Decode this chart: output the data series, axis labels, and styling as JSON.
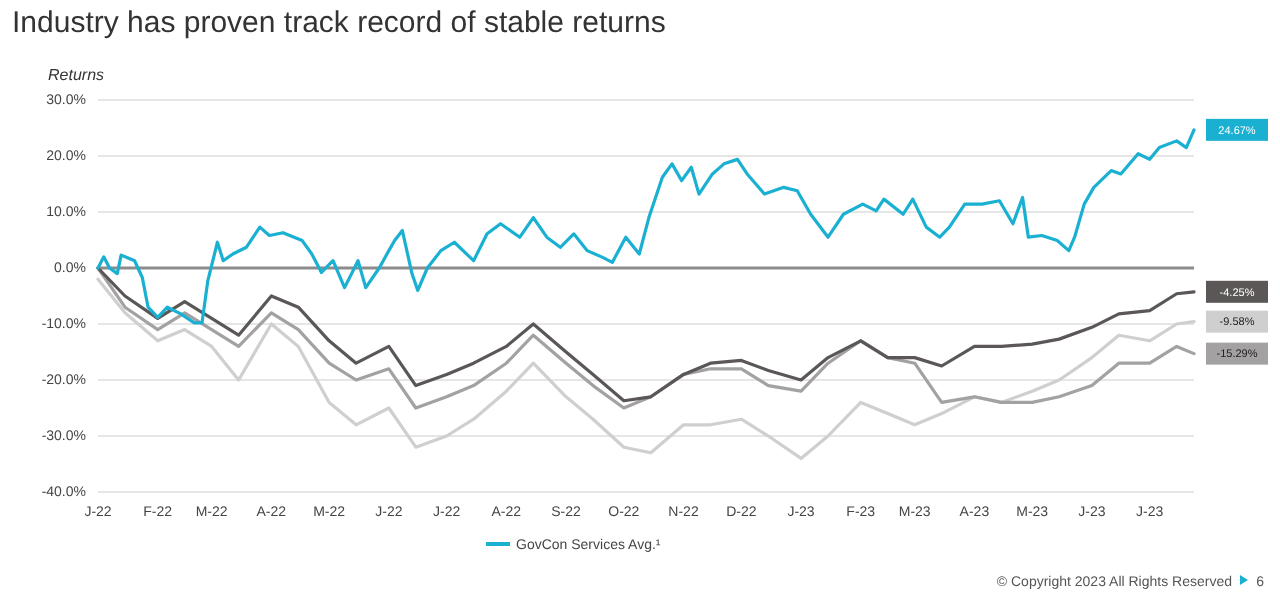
{
  "chart_data": {
    "type": "line",
    "title": "Industry has proven track record of stable returns",
    "ylabel": "Returns",
    "xlim": [
      "2022-01-01",
      "2023-07-24"
    ],
    "xticks": [
      {
        "value": "2022-01-01",
        "label": "J-22"
      },
      {
        "value": "2022-02-01",
        "label": "F-22"
      },
      {
        "value": "2022-03-01",
        "label": "M-22"
      },
      {
        "value": "2022-04-01",
        "label": "A-22"
      },
      {
        "value": "2022-05-01",
        "label": "M-22"
      },
      {
        "value": "2022-06-01",
        "label": "J-22"
      },
      {
        "value": "2022-07-01",
        "label": "J-22"
      },
      {
        "value": "2022-08-01",
        "label": "A-22"
      },
      {
        "value": "2022-09-01",
        "label": "S-22"
      },
      {
        "value": "2022-10-01",
        "label": "O-22"
      },
      {
        "value": "2022-11-01",
        "label": "N-22"
      },
      {
        "value": "2022-12-01",
        "label": "D-22"
      },
      {
        "value": "2023-01-01",
        "label": "J-23"
      },
      {
        "value": "2023-02-01",
        "label": "F-23"
      },
      {
        "value": "2023-03-01",
        "label": "M-23"
      },
      {
        "value": "2023-04-01",
        "label": "A-23"
      },
      {
        "value": "2023-05-01",
        "label": "M-23"
      },
      {
        "value": "2023-06-01",
        "label": "J-23"
      },
      {
        "value": "2023-07-01",
        "label": "J-23"
      }
    ],
    "ylim": [
      -40,
      30
    ],
    "yticks": [
      {
        "value": -40,
        "label": "-40.0%"
      },
      {
        "value": -30,
        "label": "-30.0%"
      },
      {
        "value": -20,
        "label": "-20.0%"
      },
      {
        "value": -10,
        "label": "-10.0%"
      },
      {
        "value": 0,
        "label": "0.0%"
      },
      {
        "value": 10,
        "label": "10.0%"
      },
      {
        "value": 20,
        "label": "20.0%"
      },
      {
        "value": 30,
        "label": "30.0%"
      }
    ],
    "grid": "y",
    "legend": "bottom",
    "marker": "none",
    "line_style": "solid",
    "ref_lines": [
      {
        "axis": "y",
        "value": 0,
        "color": "#8c8c8c"
      }
    ],
    "series": [
      {
        "color": "#cfcfcf",
        "x": [
          "2022-01-01",
          "2022-01-15",
          "2022-02-01",
          "2022-02-15",
          "2022-03-01",
          "2022-03-15",
          "2022-04-01",
          "2022-04-15",
          "2022-05-01",
          "2022-05-15",
          "2022-06-01",
          "2022-06-15",
          "2022-07-01",
          "2022-07-15",
          "2022-08-01",
          "2022-08-15",
          "2022-09-01",
          "2022-09-15",
          "2022-10-01",
          "2022-10-15",
          "2022-11-01",
          "2022-11-15",
          "2022-12-01",
          "2022-12-15",
          "2023-01-01",
          "2023-01-15",
          "2023-02-01",
          "2023-02-15",
          "2023-03-01",
          "2023-03-15",
          "2023-04-01",
          "2023-04-15",
          "2023-05-01",
          "2023-05-15",
          "2023-06-01",
          "2023-06-15",
          "2023-07-01",
          "2023-07-15",
          "2023-07-24"
        ],
        "values": [
          -2,
          -8,
          -13,
          -11,
          -14,
          -20,
          -10,
          -14,
          -24,
          -28,
          -25,
          -32,
          -30,
          -27,
          -22,
          -17,
          -23,
          -27,
          -32,
          -33,
          -28,
          -28,
          -27,
          -30,
          -34,
          -30,
          -24,
          -26,
          -28,
          -26,
          -23,
          -24,
          -22,
          -20,
          -16,
          -12,
          -13,
          -10,
          -9.58
        ]
      },
      {
        "color": "#a3a1a1",
        "x": [
          "2022-01-01",
          "2022-01-15",
          "2022-02-01",
          "2022-02-15",
          "2022-03-01",
          "2022-03-15",
          "2022-04-01",
          "2022-04-15",
          "2022-05-01",
          "2022-05-15",
          "2022-06-01",
          "2022-06-15",
          "2022-07-01",
          "2022-07-15",
          "2022-08-01",
          "2022-08-15",
          "2022-09-01",
          "2022-09-15",
          "2022-10-01",
          "2022-10-15",
          "2022-11-01",
          "2022-11-15",
          "2022-12-01",
          "2022-12-15",
          "2023-01-01",
          "2023-01-15",
          "2023-02-01",
          "2023-02-15",
          "2023-03-01",
          "2023-03-15",
          "2023-04-01",
          "2023-04-15",
          "2023-05-01",
          "2023-05-15",
          "2023-06-01",
          "2023-06-15",
          "2023-07-01",
          "2023-07-15",
          "2023-07-24"
        ],
        "values": [
          0,
          -7,
          -11,
          -8,
          -11,
          -14,
          -8,
          -11,
          -17,
          -20,
          -18,
          -25,
          -23,
          -21,
          -17,
          -12,
          -17,
          -21,
          -25,
          -23,
          -19,
          -18,
          -18,
          -21,
          -22,
          -17,
          -13,
          -16,
          -17,
          -24,
          -23,
          -24,
          -24,
          -23,
          -21,
          -17,
          -17,
          -14,
          -15.29
        ]
      },
      {
        "color": "#5b5757",
        "x": [
          "2022-01-01",
          "2022-01-15",
          "2022-02-01",
          "2022-02-15",
          "2022-03-01",
          "2022-03-15",
          "2022-04-01",
          "2022-04-15",
          "2022-05-01",
          "2022-05-15",
          "2022-06-01",
          "2022-06-15",
          "2022-07-01",
          "2022-07-15",
          "2022-08-01",
          "2022-08-15",
          "2022-09-01",
          "2022-09-15",
          "2022-10-01",
          "2022-10-15",
          "2022-11-01",
          "2022-11-15",
          "2022-12-01",
          "2022-12-15",
          "2023-01-01",
          "2023-01-15",
          "2023-02-01",
          "2023-02-15",
          "2023-03-01",
          "2023-03-15",
          "2023-04-01",
          "2023-04-15",
          "2023-05-01",
          "2023-05-15",
          "2023-06-01",
          "2023-06-15",
          "2023-07-01",
          "2023-07-15",
          "2023-07-24"
        ],
        "values": [
          0,
          -5,
          -9,
          -6,
          -9,
          -12,
          -5,
          -7,
          -13,
          -17,
          -14,
          -21,
          -19,
          -17,
          -14,
          -10,
          -15,
          -19,
          -23.7,
          -23,
          -19,
          -17,
          -16.5,
          -18.3,
          -20,
          -16,
          -13,
          -16,
          -16,
          -17.5,
          -14,
          -14,
          -13.6,
          -12.7,
          -10.6,
          -8.2,
          -7.6,
          -4.6,
          -4.25
        ]
      },
      {
        "name": "GovCon Services Avg.¹",
        "color": "#1ab0d2",
        "x": [
          "2022-01-01",
          "2022-01-04",
          "2022-01-07",
          "2022-01-11",
          "2022-01-13",
          "2022-01-20",
          "2022-01-24",
          "2022-01-27",
          "2022-02-01",
          "2022-02-06",
          "2022-02-13",
          "2022-02-20",
          "2022-02-24",
          "2022-02-27",
          "2022-03-04",
          "2022-03-07",
          "2022-03-12",
          "2022-03-19",
          "2022-03-26",
          "2022-03-31",
          "2022-04-07",
          "2022-04-17",
          "2022-04-22",
          "2022-04-27",
          "2022-05-03",
          "2022-05-09",
          "2022-05-16",
          "2022-05-20",
          "2022-05-27",
          "2022-06-01",
          "2022-06-04",
          "2022-06-08",
          "2022-06-13",
          "2022-06-16",
          "2022-06-21",
          "2022-06-28",
          "2022-07-05",
          "2022-07-15",
          "2022-07-22",
          "2022-07-29",
          "2022-08-08",
          "2022-08-15",
          "2022-08-22",
          "2022-08-29",
          "2022-09-05",
          "2022-09-12",
          "2022-09-20",
          "2022-09-25",
          "2022-10-02",
          "2022-10-09",
          "2022-10-14",
          "2022-10-21",
          "2022-10-26",
          "2022-10-31",
          "2022-11-05",
          "2022-11-09",
          "2022-11-16",
          "2022-11-22",
          "2022-11-29",
          "2022-12-04",
          "2022-12-13",
          "2022-12-23",
          "2022-12-30",
          "2023-01-06",
          "2023-01-15",
          "2023-01-23",
          "2023-02-02",
          "2023-02-09",
          "2023-02-13",
          "2023-02-23",
          "2023-02-28",
          "2023-03-07",
          "2023-03-14",
          "2023-03-19",
          "2023-03-27",
          "2023-04-05",
          "2023-04-14",
          "2023-04-21",
          "2023-04-26",
          "2023-04-29",
          "2023-05-06",
          "2023-05-14",
          "2023-05-20",
          "2023-05-23",
          "2023-05-28",
          "2023-06-02",
          "2023-06-11",
          "2023-06-16",
          "2023-06-25",
          "2023-07-01",
          "2023-07-06",
          "2023-07-15",
          "2023-07-20",
          "2023-07-24"
        ],
        "values": [
          0,
          2,
          0,
          -1,
          2.3,
          1.3,
          -1.7,
          -7,
          -8.8,
          -7,
          -8.2,
          -9.8,
          -9.8,
          -2.3,
          4.6,
          1.3,
          2.5,
          3.7,
          7.3,
          5.8,
          6.3,
          4.9,
          2.5,
          -0.8,
          1.3,
          -3.5,
          1.3,
          -3.5,
          0,
          3.1,
          4.9,
          6.7,
          -1,
          -4,
          0,
          3.1,
          4.6,
          1.3,
          6.1,
          7.9,
          5.5,
          9,
          5.5,
          3.7,
          6.1,
          3.1,
          1.9,
          1,
          5.5,
          2.5,
          9,
          16.2,
          18.6,
          15.6,
          18,
          13.2,
          16.8,
          18.6,
          19.4,
          16.8,
          13.2,
          14.4,
          13.8,
          9.6,
          5.5,
          9.6,
          11.4,
          10.2,
          12.3,
          9.6,
          12.3,
          7.3,
          5.5,
          7.3,
          11.4,
          11.4,
          12,
          7.9,
          12.6,
          5.5,
          5.8,
          4.9,
          3.1,
          5.5,
          11.4,
          14.4,
          17.4,
          16.8,
          20.4,
          19.4,
          21.5,
          22.7,
          21.5,
          24.67
        ]
      }
    ],
    "annotations": [
      {
        "text": "24.67%",
        "x": "2023-07-24",
        "y": 24.67
      },
      {
        "text": "-4.25%",
        "x": "2023-07-24",
        "y": -4.25
      },
      {
        "text": "-9.58%",
        "x": "2023-07-24",
        "y": -9.58
      },
      {
        "text": "-15.29%",
        "x": "2023-07-24",
        "y": -15.29
      },
      "© Copyright 2023 All Rights Reserved",
      "6"
    ]
  }
}
